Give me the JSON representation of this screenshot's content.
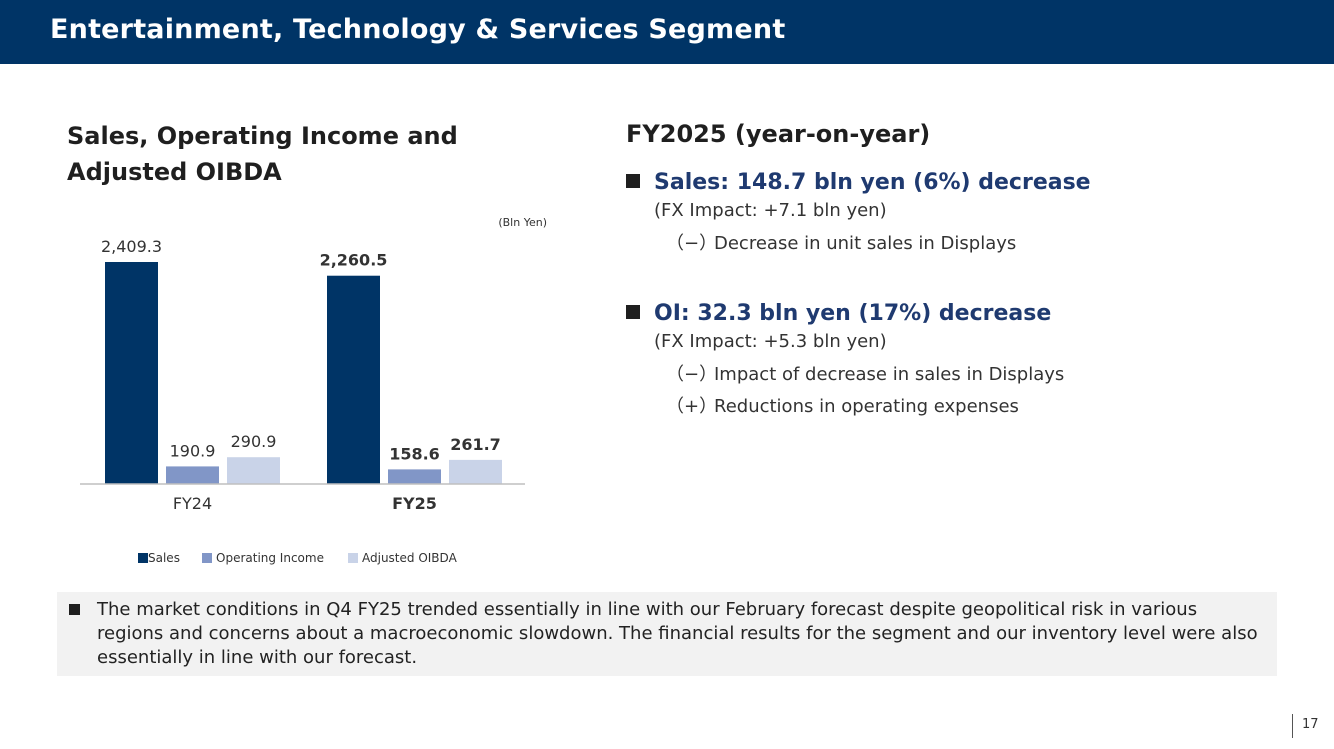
{
  "header": {
    "title": "Entertainment, Technology & Services Segment"
  },
  "left": {
    "chart_title": "Sales, Operating Income and Adjusted OIBDA"
  },
  "chart_data": {
    "type": "bar",
    "unit_label": "(Bln Yen)",
    "categories": [
      "FY24",
      "FY25"
    ],
    "series": [
      {
        "name": "Sales",
        "values": [
          2409.3,
          2260.5
        ],
        "labels": [
          "2,409.3",
          "2,260.5"
        ],
        "color": "#003466"
      },
      {
        "name": "Operating Income",
        "values": [
          190.9,
          158.6
        ],
        "labels": [
          "190.9",
          "158.6"
        ],
        "color": "#8196c7"
      },
      {
        "name": "Adjusted OIBDA",
        "values": [
          290.9,
          261.7
        ],
        "labels": [
          "290.9",
          "261.7"
        ],
        "color": "#c9d3e8"
      }
    ],
    "ylim": [
      0,
      2409.3
    ],
    "bold_category": "FY25",
    "legend_position": "bottom",
    "grid": false
  },
  "right": {
    "title": "FY2025 (year-on-year)",
    "sections": [
      {
        "heading": "Sales: 148.7 bln yen (6%) decrease",
        "fx": "(FX Impact: +7.1 bln yen)",
        "items": [
          {
            "mark": "（−）",
            "text": "Decrease in unit sales in Displays"
          }
        ]
      },
      {
        "heading": "OI: 32.3 bln yen (17%) decrease",
        "fx": "(FX Impact: +5.3 bln yen)",
        "items": [
          {
            "mark": "（−）",
            "text": "Impact of decrease in sales in Displays"
          },
          {
            "mark": "（+）",
            "text": "Reductions in operating expenses"
          }
        ]
      }
    ]
  },
  "note": {
    "text": "The market conditions in Q4 FY25 trended essentially in line with our February forecast despite geopolitical risk in various regions and concerns about a macroeconomic slowdown. The financial results for the segment and our inventory level were also essentially in line with our forecast."
  },
  "footer": {
    "page_number": "17"
  }
}
